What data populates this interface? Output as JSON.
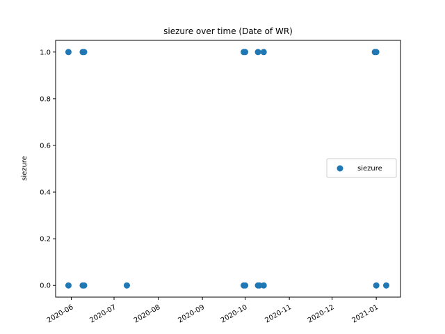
{
  "chart_data": {
    "type": "scatter",
    "title": "siezure over time (Date of WR)",
    "xlabel": "",
    "ylabel": "siezure",
    "xlim": [
      "2020-05-21",
      "2021-01-18"
    ],
    "ylim": [
      -0.05,
      1.05
    ],
    "x_ticks": [
      "2020-06",
      "2020-07",
      "2020-08",
      "2020-09",
      "2020-10",
      "2020-11",
      "2020-12",
      "2021-01"
    ],
    "y_ticks": [
      "0.0",
      "0.2",
      "0.4",
      "0.6",
      "0.8",
      "1.0"
    ],
    "grid": false,
    "legend_position": "center-right",
    "series": [
      {
        "name": "siezure",
        "color": "#1f77b4",
        "points": [
          {
            "x": "2020-05-30",
            "y": 1
          },
          {
            "x": "2020-06-09",
            "y": 1
          },
          {
            "x": "2020-06-10",
            "y": 1
          },
          {
            "x": "2020-09-30",
            "y": 1
          },
          {
            "x": "2020-10-01",
            "y": 1
          },
          {
            "x": "2020-10-10",
            "y": 1
          },
          {
            "x": "2020-10-14",
            "y": 1
          },
          {
            "x": "2020-12-31",
            "y": 1
          },
          {
            "x": "2021-01-01",
            "y": 1
          },
          {
            "x": "2020-05-30",
            "y": 0
          },
          {
            "x": "2020-06-09",
            "y": 0
          },
          {
            "x": "2020-06-10",
            "y": 0
          },
          {
            "x": "2020-07-10",
            "y": 0
          },
          {
            "x": "2020-09-30",
            "y": 0
          },
          {
            "x": "2020-10-01",
            "y": 0
          },
          {
            "x": "2020-10-10",
            "y": 0
          },
          {
            "x": "2020-10-11",
            "y": 0
          },
          {
            "x": "2020-10-14",
            "y": 0
          },
          {
            "x": "2021-01-01",
            "y": 0
          },
          {
            "x": "2021-01-08",
            "y": 0
          }
        ]
      }
    ]
  }
}
